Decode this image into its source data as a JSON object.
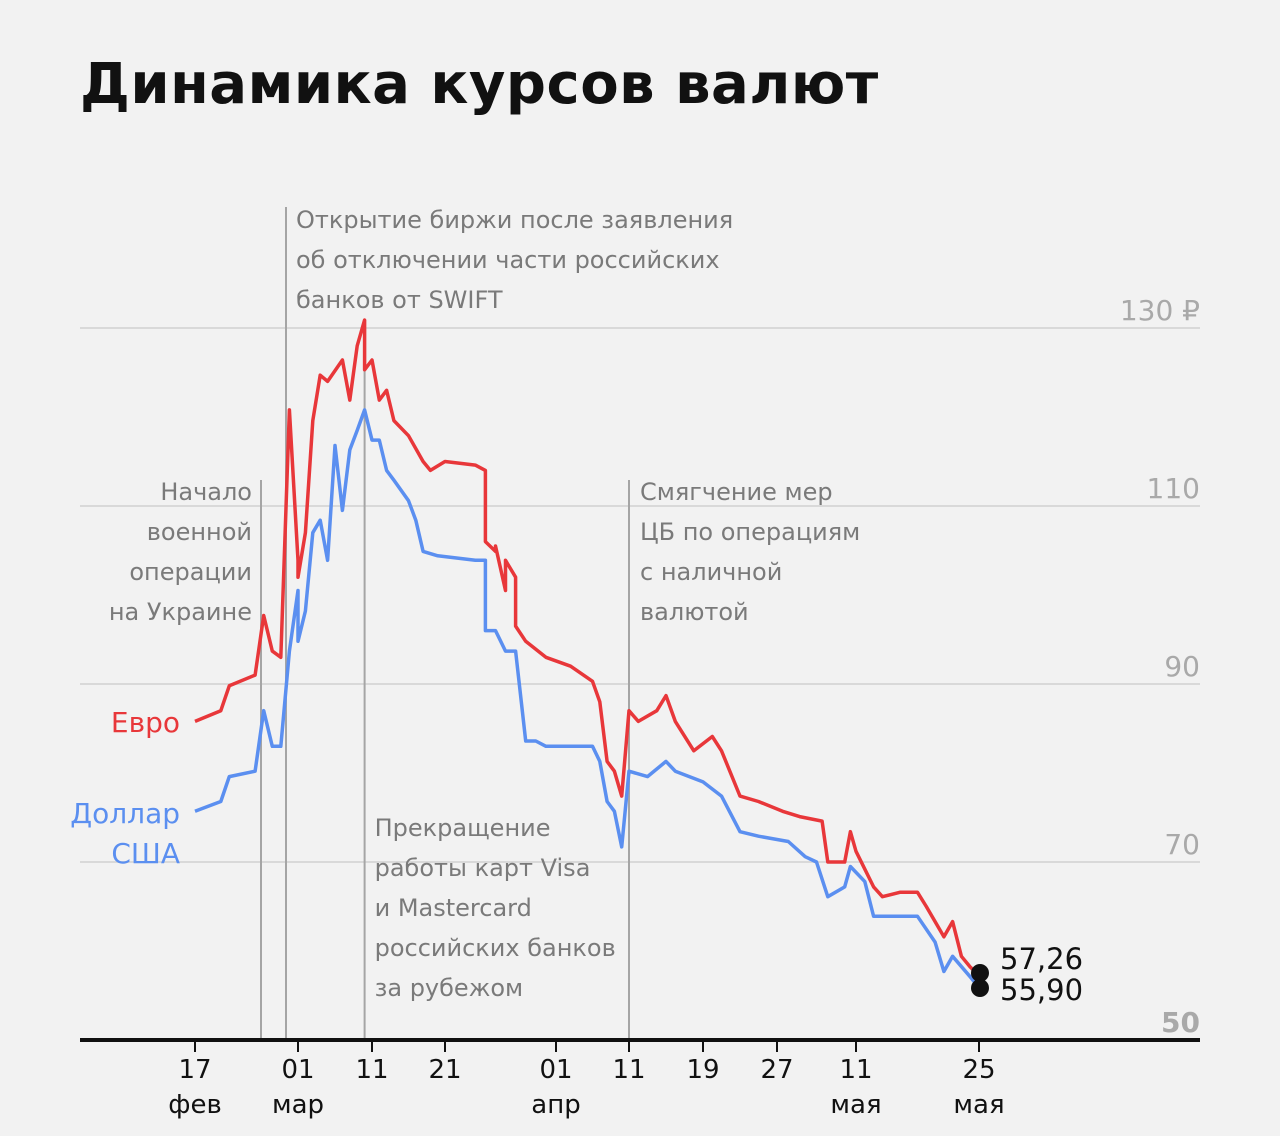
{
  "title": "Динамика курсов валют",
  "colors": {
    "euro": "#e8373a",
    "usd": "#5b8ff0",
    "grid": "#d9d9d9",
    "annotation": "#7a7a7a",
    "axis": "#111111"
  },
  "chart_data": {
    "type": "line",
    "title": "Динамика курсов валют",
    "ylim": [
      50,
      130
    ],
    "y_ticks": [
      {
        "value": 130,
        "label": "130 ₽"
      },
      {
        "value": 110,
        "label": "110"
      },
      {
        "value": 90,
        "label": "90"
      },
      {
        "value": 70,
        "label": "70"
      },
      {
        "value": 50,
        "label": "50"
      }
    ],
    "x_ticks": [
      {
        "date": "02-17",
        "day": "17",
        "month": "фев"
      },
      {
        "date": "03-01",
        "day": "01",
        "month": "мар"
      },
      {
        "date": "03-11",
        "day": "11",
        "month": ""
      },
      {
        "date": "03-21",
        "day": "21",
        "month": ""
      },
      {
        "date": "04-01",
        "day": "01",
        "month": "апр"
      },
      {
        "date": "04-11",
        "day": "11",
        "month": ""
      },
      {
        "date": "04-19",
        "day": "19",
        "month": ""
      },
      {
        "date": "04-27",
        "day": "27",
        "month": ""
      },
      {
        "date": "05-11",
        "day": "11",
        "month": "мая"
      },
      {
        "date": "05-25",
        "day": "25",
        "month": "мая"
      }
    ],
    "grid": true,
    "series": [
      {
        "name": "Евро",
        "color": "#e8373a",
        "last_label": "57,26",
        "points": [
          [
            "02-17",
            85.8
          ],
          [
            "02-20",
            87
          ],
          [
            "02-21",
            89.8
          ],
          [
            "02-24",
            91
          ],
          [
            "02-25",
            97.7
          ],
          [
            "02-26",
            93.7
          ],
          [
            "02-27",
            93
          ],
          [
            "02-28",
            120.8
          ],
          [
            "03-01",
            103.9
          ],
          [
            "03-01",
            102
          ],
          [
            "03-02",
            107
          ],
          [
            "03-03",
            119.6
          ],
          [
            "03-04",
            124.7
          ],
          [
            "03-05",
            124
          ],
          [
            "03-07",
            126.4
          ],
          [
            "03-08",
            121.9
          ],
          [
            "03-09",
            128
          ],
          [
            "03-10",
            130.9
          ],
          [
            "03-10",
            125.3
          ],
          [
            "03-11",
            126.4
          ],
          [
            "03-12",
            121.9
          ],
          [
            "03-13",
            123
          ],
          [
            "03-14",
            119.6
          ],
          [
            "03-16",
            117.9
          ],
          [
            "03-18",
            115
          ],
          [
            "03-19",
            114
          ],
          [
            "03-21",
            115
          ],
          [
            "03-24",
            114.6
          ],
          [
            "03-25",
            114
          ],
          [
            "03-25",
            106
          ],
          [
            "03-26",
            104.9
          ],
          [
            "03-26",
            105.5
          ],
          [
            "03-27",
            100.5
          ],
          [
            "03-27",
            103.9
          ],
          [
            "03-28",
            102
          ],
          [
            "03-28",
            96.5
          ],
          [
            "03-29",
            94.8
          ],
          [
            "03-31",
            93
          ],
          [
            "04-03",
            92
          ],
          [
            "04-06",
            90.3
          ],
          [
            "04-07",
            88
          ],
          [
            "04-08",
            81.3
          ],
          [
            "04-09",
            80.2
          ],
          [
            "04-10",
            77.4
          ],
          [
            "04-11",
            87
          ],
          [
            "04-12",
            85.8
          ],
          [
            "04-14",
            87
          ],
          [
            "04-15",
            88.7
          ],
          [
            "04-16",
            85.8
          ],
          [
            "04-18",
            82.5
          ],
          [
            "04-20",
            84.1
          ],
          [
            "04-21",
            82.5
          ],
          [
            "04-23",
            77.4
          ],
          [
            "04-25",
            76.8
          ],
          [
            "04-28",
            75.7
          ],
          [
            "05-01",
            75.1
          ],
          [
            "05-05",
            74.6
          ],
          [
            "05-06",
            70
          ],
          [
            "05-09",
            70
          ],
          [
            "05-10",
            73.4
          ],
          [
            "05-11",
            71.2
          ],
          [
            "05-13",
            67.2
          ],
          [
            "05-14",
            66.1
          ],
          [
            "05-16",
            66.6
          ],
          [
            "05-18",
            66.6
          ],
          [
            "05-19",
            65
          ],
          [
            "05-21",
            61.6
          ],
          [
            "05-22",
            63.3
          ],
          [
            "05-23",
            59.4
          ],
          [
            "05-24",
            58.2
          ],
          [
            "05-25",
            57.26
          ]
        ]
      },
      {
        "name": "Доллар США",
        "name_lines": [
          "Доллар",
          "США"
        ],
        "color": "#5b8ff0",
        "last_label": "55,90",
        "points": [
          [
            "02-17",
            75.7
          ],
          [
            "02-20",
            76.8
          ],
          [
            "02-21",
            79.6
          ],
          [
            "02-24",
            80.2
          ],
          [
            "02-25",
            87
          ],
          [
            "02-26",
            83
          ],
          [
            "02-27",
            83
          ],
          [
            "02-28",
            93.7
          ],
          [
            "03-01",
            100.5
          ],
          [
            "03-01",
            94.8
          ],
          [
            "03-02",
            98.2
          ],
          [
            "03-03",
            107
          ],
          [
            "03-04",
            108.4
          ],
          [
            "03-05",
            103.9
          ],
          [
            "03-06",
            116.8
          ],
          [
            "03-07",
            109.5
          ],
          [
            "03-08",
            116.3
          ],
          [
            "03-09",
            118.5
          ],
          [
            "03-10",
            120.8
          ],
          [
            "03-11",
            117.4
          ],
          [
            "03-12",
            117.4
          ],
          [
            "03-13",
            114
          ],
          [
            "03-14",
            112.9
          ],
          [
            "03-16",
            110.6
          ],
          [
            "03-17",
            108.4
          ],
          [
            "03-18",
            104.9
          ],
          [
            "03-20",
            104.4
          ],
          [
            "03-24",
            103.9
          ],
          [
            "03-25",
            103.9
          ],
          [
            "03-25",
            96
          ],
          [
            "03-26",
            96
          ],
          [
            "03-27",
            93.7
          ],
          [
            "03-28",
            93.7
          ],
          [
            "03-29",
            83.6
          ],
          [
            "03-30",
            83.6
          ],
          [
            "03-31",
            83
          ],
          [
            "04-06",
            83
          ],
          [
            "04-07",
            81.3
          ],
          [
            "04-08",
            76.8
          ],
          [
            "04-09",
            75.7
          ],
          [
            "04-10",
            71.7
          ],
          [
            "04-11",
            80.2
          ],
          [
            "04-13",
            79.6
          ],
          [
            "04-15",
            81.3
          ],
          [
            "04-16",
            80.2
          ],
          [
            "04-19",
            79
          ],
          [
            "04-21",
            77.4
          ],
          [
            "04-23",
            73.4
          ],
          [
            "04-25",
            72.9
          ],
          [
            "04-29",
            72.3
          ],
          [
            "05-02",
            70.6
          ],
          [
            "05-04",
            70
          ],
          [
            "05-06",
            66.1
          ],
          [
            "05-09",
            67.2
          ],
          [
            "05-10",
            69.5
          ],
          [
            "05-12",
            67.8
          ],
          [
            "05-13",
            63.9
          ],
          [
            "05-15",
            63.9
          ],
          [
            "05-18",
            63.9
          ],
          [
            "05-20",
            61
          ],
          [
            "05-21",
            57.7
          ],
          [
            "05-22",
            59.4
          ],
          [
            "05-24",
            57.1
          ],
          [
            "05-25",
            55.9
          ]
        ]
      }
    ],
    "annotations": [
      {
        "date": "02-24",
        "align": "left",
        "lines": [
          "Начало",
          "военной",
          "операции",
          "на Украине"
        ]
      },
      {
        "date": "02-28",
        "align": "right",
        "lines": [
          "Открытие биржи после заявления",
          "об отключении части российских",
          "банков от SWIFT"
        ]
      },
      {
        "date": "03-10",
        "align": "right",
        "lines": [
          "Прекращение",
          "работы карт Visa",
          "и Mastercard",
          "российских банков",
          "за рубежом"
        ]
      },
      {
        "date": "04-11",
        "align": "right",
        "lines": [
          "Смягчение мер",
          "ЦБ по операциям",
          "с наличной",
          "валютой"
        ]
      }
    ]
  }
}
